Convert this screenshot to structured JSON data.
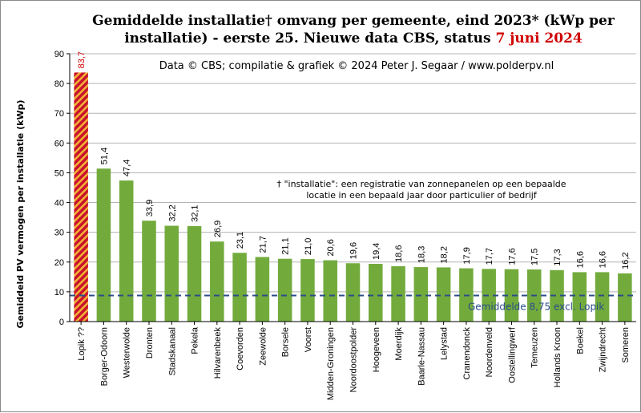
{
  "chart_data": {
    "type": "bar",
    "title_line1": "Gemiddelde installatie† omvang per gemeente, eind 2023* (kWp per",
    "title_line2_prefix": "installatie) - eerste 25. Nieuwe data CBS, status ",
    "title_line2_date": "7 juni 2024",
    "subtitle": "Data © CBS; compilatie & grafiek © 2024 Peter J. Segaar / www.polderpv.nl",
    "annotation_line1": "† \"installatie\": een registratie van zonnepanelen op een bepaalde",
    "annotation_line2": "locatie in een bepaald jaar door particulier of bedrijf",
    "ylabel": "Gemiddeld PV vermogen per installatie (kWp)",
    "ylim": [
      0,
      90
    ],
    "yticks": [
      0,
      10,
      20,
      30,
      40,
      50,
      60,
      70,
      80,
      90
    ],
    "grid": true,
    "categories": [
      "Lopik ??",
      "Borger-Odoorn",
      "Westerwolde",
      "Dronten",
      "Stadskanaal",
      "Pekela",
      "Hilvarenbeek",
      "Coevorden",
      "Zeewolde",
      "Borsele",
      "Voorst",
      "Midden-Groningen",
      "Noordoostpolder",
      "Hoogeveen",
      "Moerdijk",
      "Baarle-Nassau",
      "Lelystad",
      "Cranendonck",
      "Noordenveld",
      "Oostellingwerf",
      "Temeuzen",
      "Hollands Kroon",
      "Boekel",
      "Zwijndrecht",
      "Someren"
    ],
    "values": [
      83.7,
      51.4,
      47.4,
      33.9,
      32.2,
      32.1,
      26.9,
      23.1,
      21.7,
      21.1,
      21.0,
      20.6,
      19.6,
      19.4,
      18.6,
      18.3,
      18.2,
      17.9,
      17.7,
      17.6,
      17.5,
      17.3,
      16.6,
      16.6,
      16.2
    ],
    "value_labels": [
      "83,7",
      "51,4",
      "47,4",
      "33,9",
      "32,2",
      "32,1",
      "26,9",
      "23,1",
      "21,7",
      "21,1",
      "21,0",
      "20,6",
      "19,6",
      "19,4",
      "18,6",
      "18,3",
      "18,2",
      "17,9",
      "17,7",
      "17,6",
      "17,5",
      "17,3",
      "16,6",
      "16,6",
      "16,2"
    ],
    "highlight_index": 0,
    "average": {
      "value": 8.75,
      "label": "Gemiddelde 8,75 excl. Lopik"
    },
    "colors": {
      "bar": "#72ab3c",
      "highlight_fill": "#c8102e",
      "highlight_stripe": "#f2b233",
      "average_line": "#2a4d8a",
      "highlight_text": "#d00000",
      "grid": "#b4b4b4"
    }
  }
}
